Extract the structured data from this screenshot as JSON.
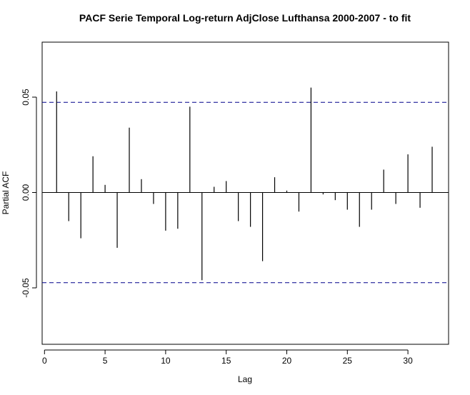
{
  "chart_data": {
    "type": "bar",
    "title": "PACF Serie Temporal Log-return AdjClose Lufthansa 2000-2007 - to fit",
    "xlabel": "Lag",
    "ylabel": "Partial ACF",
    "xlim": [
      0,
      33
    ],
    "ylim": [
      -0.08,
      0.08
    ],
    "x_ticks": [
      0,
      5,
      10,
      15,
      20,
      25,
      30
    ],
    "y_ticks": [
      -0.05,
      0.0,
      0.05
    ],
    "y_tick_labels": [
      "-0.05",
      "0.00",
      "0.05"
    ],
    "confidence_bounds": [
      0.0473,
      -0.0473
    ],
    "x": [
      1,
      2,
      3,
      4,
      5,
      6,
      7,
      8,
      9,
      10,
      11,
      12,
      13,
      14,
      15,
      16,
      17,
      18,
      19,
      20,
      21,
      22,
      23,
      24,
      25,
      26,
      27,
      28,
      29,
      30,
      31,
      32
    ],
    "values": [
      0.053,
      -0.015,
      -0.024,
      0.019,
      0.004,
      -0.029,
      0.034,
      0.007,
      -0.006,
      -0.02,
      -0.019,
      0.045,
      -0.046,
      0.003,
      0.006,
      -0.015,
      -0.018,
      -0.036,
      0.008,
      0.001,
      -0.01,
      0.055,
      -0.001,
      -0.004,
      -0.009,
      -0.018,
      -0.009,
      0.012,
      -0.006,
      0.02,
      -0.008,
      0.024
    ],
    "colors": {
      "bars": "#000000",
      "bounds": "#00008b",
      "zero_line": "#000000",
      "frame": "#000000"
    }
  }
}
